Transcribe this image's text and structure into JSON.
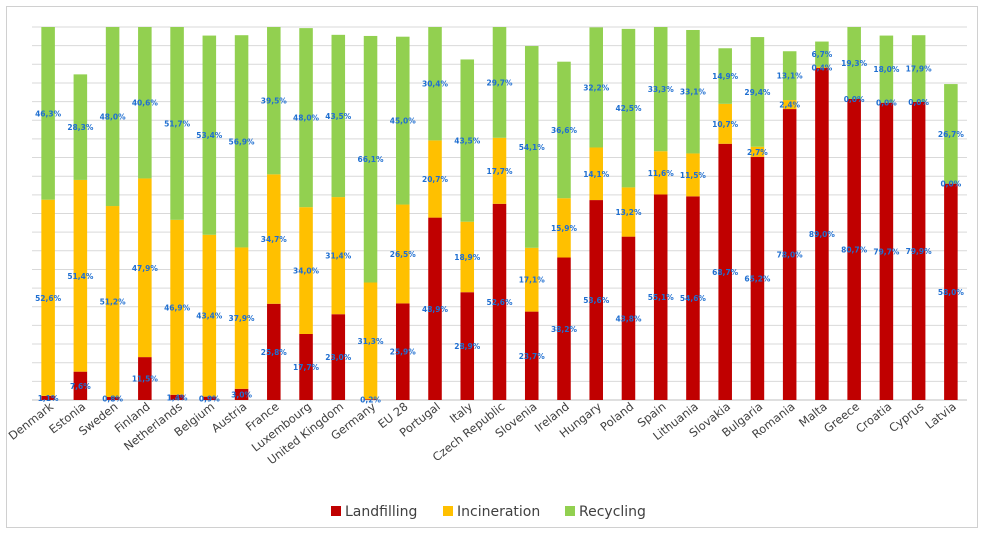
{
  "chart_data": {
    "type": "bar",
    "stacked": true,
    "percent": true,
    "categories": [
      "Denmark",
      "Estonia",
      "Sweden",
      "Finland",
      "Netherlands",
      "Belgium",
      "Austria",
      "France",
      "Luxembourg",
      "United Kingdom",
      "Germany",
      "EU 28",
      "Portugal",
      "Italy",
      "Czech Republic",
      "Slovenia",
      "Ireland",
      "Hungary",
      "Poland",
      "Spain",
      "Lithuania",
      "Slovakia",
      "Bulgaria",
      "Romania",
      "Malta",
      "Greece",
      "Croatia",
      "Cyprus",
      "Latvia"
    ],
    "series": [
      {
        "name": "Landfilling",
        "color": "#c00000",
        "values": [
          1.1,
          7.6,
          0.8,
          11.5,
          1.4,
          0.9,
          3.0,
          25.8,
          17.7,
          23.0,
          0.2,
          25.9,
          48.9,
          28.9,
          52.6,
          23.7,
          38.2,
          53.6,
          43.8,
          55.1,
          54.6,
          68.7,
          65.2,
          78.0,
          89.0,
          80.7,
          79.7,
          79.9,
          58.0
        ],
        "labels": [
          "1,1%",
          "7,6%",
          "0,8%",
          "11,5%",
          "1,4%",
          "0,9%",
          "3,0%",
          "25,8%",
          "17,7%",
          "23,0%",
          "0,2%",
          "25,9%",
          "48,9%",
          "28,9%",
          "52,6%",
          "23,7%",
          "38,2%",
          "53,6%",
          "43,8%",
          "55,1%",
          "54,6%",
          "68,7%",
          "65,2%",
          "78,0%",
          "89,0%",
          "80,7%",
          "79,7%",
          "79,9%",
          "58,0%"
        ]
      },
      {
        "name": "Incineration",
        "color": "#ffc000",
        "values": [
          52.6,
          51.4,
          51.2,
          47.9,
          46.9,
          43.4,
          37.9,
          34.7,
          34.0,
          31.4,
          31.3,
          26.5,
          20.7,
          18.9,
          17.7,
          17.1,
          15.9,
          14.1,
          13.2,
          11.6,
          11.5,
          10.7,
          2.7,
          2.4,
          0.4,
          0.0,
          0.0,
          0.0,
          0.0
        ],
        "labels": [
          "52,6%",
          "51,4%",
          "51,2%",
          "47,9%",
          "46,9%",
          "43,4%",
          "37,9%",
          "34,7%",
          "34,0%",
          "31,4%",
          "31,3%",
          "26,5%",
          "20,7%",
          "18,9%",
          "17,7%",
          "17,1%",
          "15,9%",
          "14,1%",
          "13,2%",
          "11,6%",
          "11,5%",
          "10,7%",
          "2,7%",
          "2,4%",
          "0,4%",
          "0,0%",
          "0,0%",
          "0,0%",
          "0,0%"
        ]
      },
      {
        "name": "Recycling",
        "color": "#92d050",
        "values": [
          46.3,
          28.3,
          48.0,
          40.6,
          51.7,
          53.4,
          56.9,
          39.5,
          48.0,
          43.5,
          66.1,
          45.0,
          30.4,
          43.5,
          29.7,
          54.1,
          36.6,
          32.2,
          42.5,
          33.3,
          33.1,
          14.9,
          29.4,
          13.1,
          6.7,
          19.3,
          18.0,
          17.9,
          26.7
        ],
        "labels": [
          "46,3%",
          "28,3%",
          "48,0%",
          "40,6%",
          "51,7%",
          "53,4%",
          "56,9%",
          "39,5%",
          "48,0%",
          "43,5%",
          "66,1%",
          "45,0%",
          "30,4%",
          "43,5%",
          "29,7%",
          "54,1%",
          "36,6%",
          "32,2%",
          "42,5%",
          "33,3%",
          "33,1%",
          "14,9%",
          "29,4%",
          "13,1%",
          "6,7%",
          "19,3%",
          "18,0%",
          "17,9%",
          "26,7%"
        ]
      }
    ],
    "ylim": [
      0,
      100
    ],
    "grid": true,
    "legend": "bottom",
    "title": "",
    "xlabel": "",
    "ylabel": ""
  }
}
